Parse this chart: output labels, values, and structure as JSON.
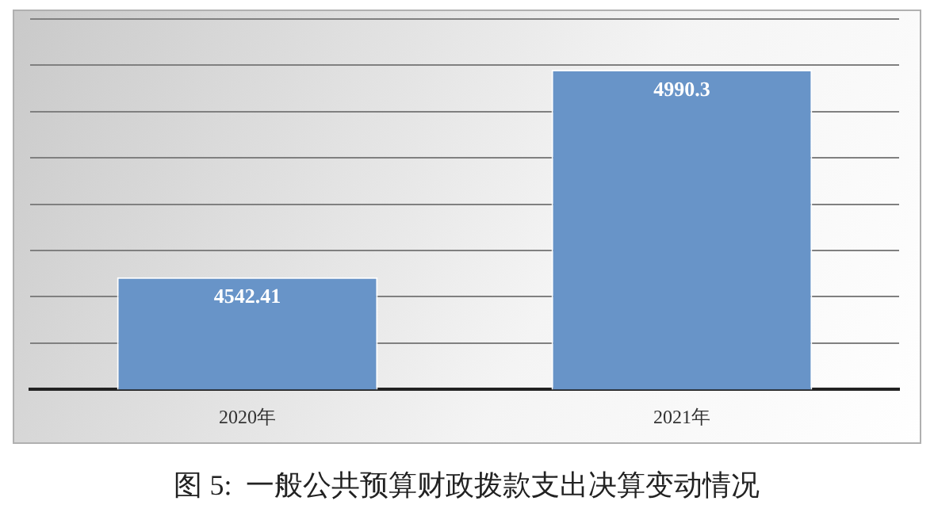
{
  "chart_data": {
    "type": "bar",
    "title": "图 5:  一般公共预算财政拨款支出决算变动情况",
    "categories": [
      "2020年",
      "2021年"
    ],
    "values": [
      4542.41,
      4990.3
    ],
    "color": "#6894c8",
    "ylim": [
      4300,
      5100
    ],
    "yticks": [
      {
        "value": 4300,
        "label": null
      },
      {
        "value": 4400,
        "label": null
      },
      {
        "value": 4500,
        "label": null
      },
      {
        "value": 4600,
        "label": null
      },
      {
        "value": 4700,
        "label": null
      },
      {
        "value": 4800,
        "label": null
      },
      {
        "value": 4900,
        "label": null
      },
      {
        "value": 5000,
        "label": null
      },
      {
        "value": 5100,
        "label": null
      }
    ],
    "tick_labels": "x",
    "grid": "y",
    "legend": false,
    "data_labels": true
  }
}
